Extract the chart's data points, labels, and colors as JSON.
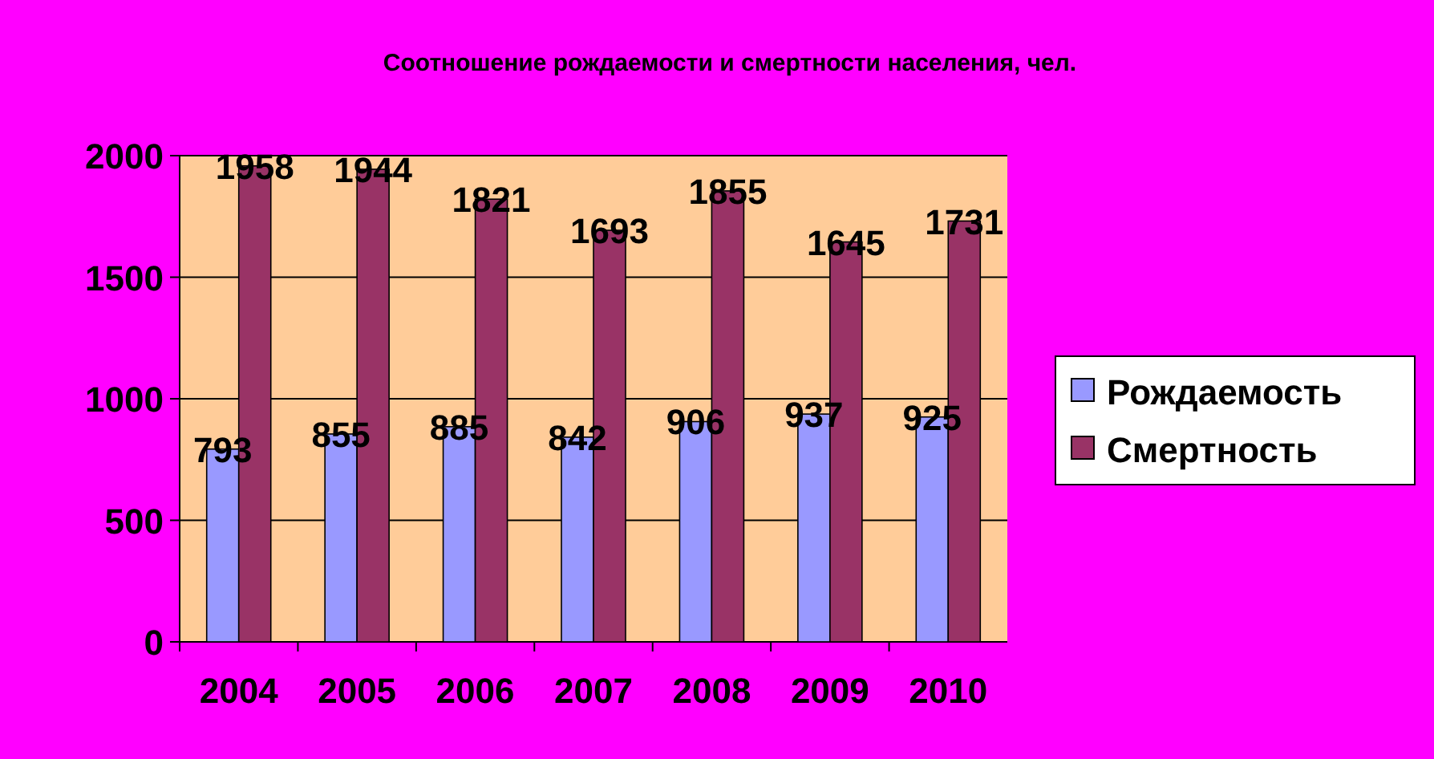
{
  "chart_data": {
    "type": "bar",
    "title": "Соотношение рождаемости и смертности населения, чел.",
    "categories": [
      "2004",
      "2005",
      "2006",
      "2007",
      "2008",
      "2009",
      "2010"
    ],
    "series": [
      {
        "name": "Рождаемость",
        "color": "#9999ff",
        "values": [
          793,
          855,
          885,
          842,
          906,
          937,
          925
        ]
      },
      {
        "name": "Смертность",
        "color": "#993366",
        "values": [
          1958,
          1944,
          1821,
          1693,
          1855,
          1645,
          1731
        ]
      }
    ],
    "ylim": [
      0,
      2000
    ],
    "yticks": [
      0,
      500,
      1000,
      1500,
      2000
    ],
    "grid": "y",
    "legend": "right",
    "data_labels": true
  }
}
